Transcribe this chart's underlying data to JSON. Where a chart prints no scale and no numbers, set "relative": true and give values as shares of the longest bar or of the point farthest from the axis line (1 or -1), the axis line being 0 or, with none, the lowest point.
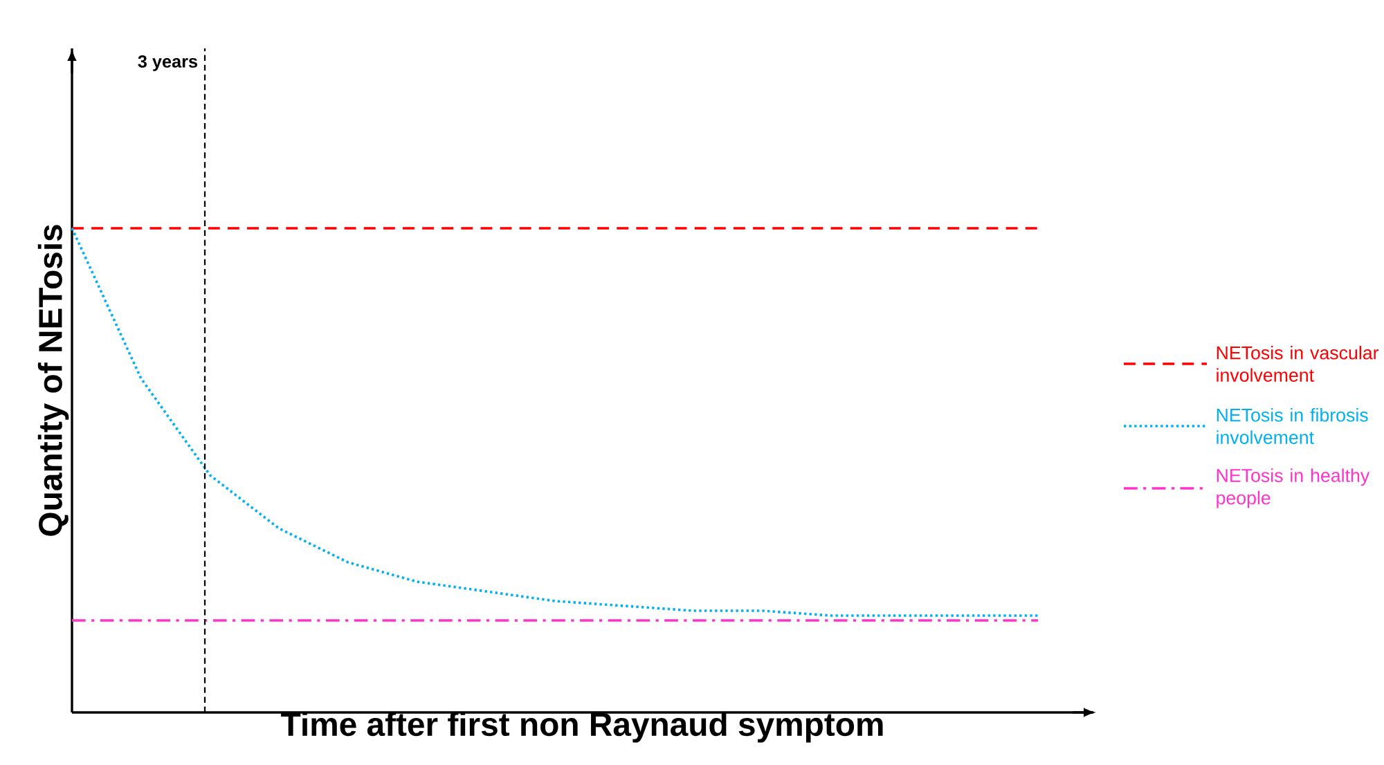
{
  "chart_data": {
    "type": "line",
    "relative": true,
    "xlabel": "Time after first non Raynaud symptom",
    "ylabel": "Quantity of NETosis",
    "categories": [
      null,
      null,
      null,
      null,
      null,
      null,
      null,
      null,
      null,
      null,
      null,
      null,
      null,
      null,
      null
    ],
    "series": [
      {
        "name": "NETosis in vascular involvement",
        "color": "#ff0000",
        "line_style": "dashed",
        "values": [
          1,
          1,
          1,
          1,
          1,
          1,
          1,
          1,
          1,
          1,
          1,
          1,
          1,
          1,
          1
        ]
      },
      {
        "name": "NETosis in fibrosis involvement",
        "color": "#00b0f0",
        "line_style": "dotted",
        "values": [
          1,
          0.69,
          0.49,
          0.38,
          0.31,
          0.27,
          0.25,
          0.23,
          0.22,
          0.21,
          0.21,
          0.2,
          0.2,
          0.2,
          0.2
        ]
      },
      {
        "name": "NETosis in healthy people",
        "color": "#ff33cc",
        "line_style": "dashdot",
        "values": [
          0.19,
          0.19,
          0.19,
          0.19,
          0.19,
          0.19,
          0.19,
          0.19,
          0.19,
          0.19,
          0.19,
          0.19,
          0.19,
          0.19,
          0.19
        ]
      }
    ],
    "annotations": [
      "3 years"
    ],
    "legend": "right",
    "marker": "none"
  }
}
